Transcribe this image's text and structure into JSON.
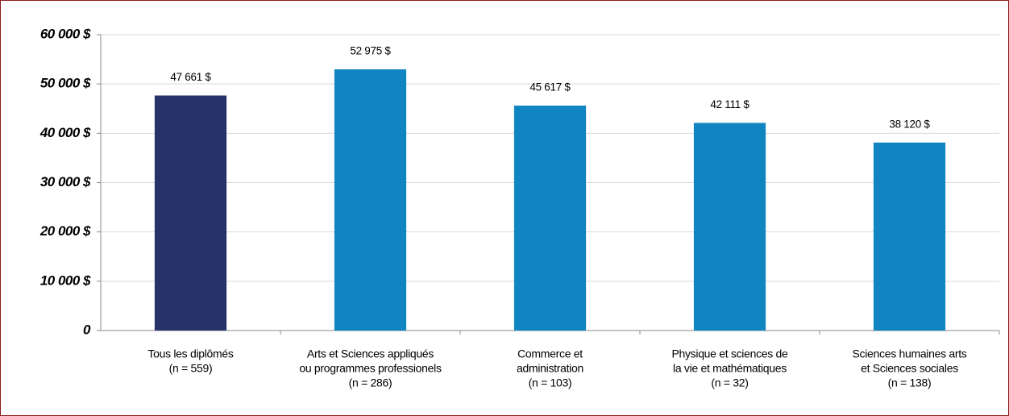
{
  "chart_data": {
    "type": "bar",
    "categories": [
      [
        "Tous les diplômés",
        "(n = 559)"
      ],
      [
        "Arts et Sciences appliqués",
        "ou programmes professionels",
        "(n = 286)"
      ],
      [
        "Commerce et",
        "administration",
        "(n = 103)"
      ],
      [
        "Physique et sciences de",
        "la vie et mathématiques",
        "(n = 32)"
      ],
      [
        "Sciences humaines arts",
        "et Sciences sociales",
        "(n = 138)"
      ]
    ],
    "values": [
      47661,
      52975,
      45617,
      42111,
      38120
    ],
    "value_labels": [
      "47 661 $",
      "52 975 $",
      "45 617 $",
      "42 111 $",
      "38 120 $"
    ],
    "colors": [
      "#253369",
      "#1185c2",
      "#1185c2",
      "#1185c2",
      "#1185c2"
    ],
    "ylim": [
      0,
      60000
    ],
    "yticks": [
      {
        "value": 0,
        "label": "0"
      },
      {
        "value": 10000,
        "label": "10 000 $"
      },
      {
        "value": 20000,
        "label": "20 000 $"
      },
      {
        "value": 30000,
        "label": "30 000 $"
      },
      {
        "value": 40000,
        "label": "40 000 $"
      },
      {
        "value": 50000,
        "label": "50 000 $"
      },
      {
        "value": 60000,
        "label": "60 000 $"
      }
    ],
    "grid": true
  }
}
